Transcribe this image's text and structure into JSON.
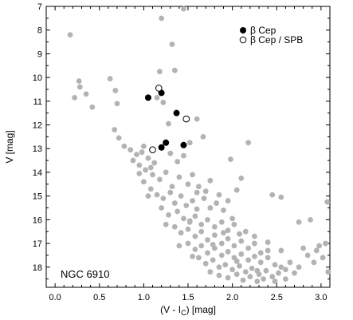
{
  "chart_data": {
    "type": "scatter",
    "xlabel": "(V - I",
    "xlabel_sub": "C",
    "xlabel_tail": ") [mag]",
    "ylabel": "V [mag]",
    "xlim": [
      -0.1,
      3.1
    ],
    "ylim": [
      7,
      18.85
    ],
    "y_inverted": true,
    "x_ticks": [
      0.0,
      0.5,
      1.0,
      1.5,
      2.0,
      2.5,
      3.0
    ],
    "x_tick_labels": [
      "0.0",
      "0.5",
      "1.0",
      "1.5",
      "2.0",
      "2.5",
      "3.0"
    ],
    "y_ticks": [
      7,
      8,
      9,
      10,
      11,
      12,
      13,
      14,
      15,
      16,
      17,
      18
    ],
    "y_tick_labels": [
      "7",
      "8",
      "9",
      "10",
      "11",
      "12",
      "13",
      "14",
      "15",
      "16",
      "17",
      "18"
    ],
    "annotation": "NGC 6910",
    "legend_position": "top-right",
    "grid": false,
    "colors": {
      "field": "#b3b3b3",
      "bcep": "#000000",
      "spb_edge": "#000000"
    },
    "series": [
      {
        "key": "field",
        "style": "filled-gray",
        "points": [
          [
            0.17,
            8.2
          ],
          [
            1.2,
            7.5
          ],
          [
            1.45,
            7.1
          ],
          [
            1.32,
            8.6
          ],
          [
            1.35,
            9.7
          ],
          [
            0.27,
            10.15
          ],
          [
            0.28,
            10.4
          ],
          [
            0.35,
            10.7
          ],
          [
            0.22,
            10.85
          ],
          [
            0.42,
            11.25
          ],
          [
            0.62,
            10.05
          ],
          [
            0.68,
            10.55
          ],
          [
            0.7,
            11.1
          ],
          [
            1.18,
            9.75
          ],
          [
            1.15,
            10.85
          ],
          [
            1.22,
            11.05
          ],
          [
            1.28,
            11.95
          ],
          [
            0.67,
            12.2
          ],
          [
            0.72,
            12.55
          ],
          [
            0.78,
            12.9
          ],
          [
            0.85,
            13.05
          ],
          [
            0.92,
            13.25
          ],
          [
            1.0,
            12.9
          ],
          [
            1.05,
            13.4
          ],
          [
            1.12,
            13.6
          ],
          [
            1.3,
            13.2
          ],
          [
            1.38,
            13.55
          ],
          [
            1.45,
            13.3
          ],
          [
            1.52,
            12.75
          ],
          [
            1.6,
            11.75
          ],
          [
            1.67,
            12.5
          ],
          [
            2.18,
            12.75
          ],
          [
            1.98,
            13.45
          ],
          [
            2.1,
            14.25
          ],
          [
            1.75,
            14.35
          ],
          [
            2.05,
            14.75
          ],
          [
            2.45,
            14.95
          ],
          [
            2.55,
            15.05
          ],
          [
            2.88,
            16.0
          ],
          [
            3.07,
            15.25
          ],
          [
            2.75,
            16.1
          ],
          [
            0.88,
            13.5
          ],
          [
            0.95,
            13.7
          ],
          [
            1.02,
            13.9
          ],
          [
            1.1,
            14.1
          ],
          [
            1.18,
            14.3
          ],
          [
            1.25,
            14.0
          ],
          [
            1.4,
            14.2
          ],
          [
            1.5,
            14.5
          ],
          [
            1.55,
            14.1
          ],
          [
            1.62,
            14.6
          ],
          [
            1.7,
            14.8
          ],
          [
            1.0,
            14.4
          ],
          [
            1.08,
            14.7
          ],
          [
            1.15,
            14.95
          ],
          [
            1.22,
            15.1
          ],
          [
            1.3,
            14.85
          ],
          [
            1.35,
            15.3
          ],
          [
            1.42,
            15.0
          ],
          [
            1.48,
            15.4
          ],
          [
            1.55,
            15.2
          ],
          [
            1.6,
            15.55
          ],
          [
            1.68,
            15.1
          ],
          [
            1.75,
            15.5
          ],
          [
            1.82,
            15.3
          ],
          [
            1.9,
            15.6
          ],
          [
            1.95,
            15.2
          ],
          [
            1.2,
            15.5
          ],
          [
            1.28,
            15.8
          ],
          [
            1.38,
            15.65
          ],
          [
            1.45,
            15.95
          ],
          [
            1.52,
            16.1
          ],
          [
            1.58,
            15.85
          ],
          [
            1.65,
            16.2
          ],
          [
            1.72,
            16.0
          ],
          [
            1.8,
            16.3
          ],
          [
            1.88,
            16.1
          ],
          [
            1.95,
            16.45
          ],
          [
            2.02,
            16.2
          ],
          [
            2.08,
            16.6
          ],
          [
            1.35,
            16.3
          ],
          [
            1.42,
            16.55
          ],
          [
            1.5,
            16.4
          ],
          [
            1.58,
            16.7
          ],
          [
            1.65,
            16.5
          ],
          [
            1.72,
            16.85
          ],
          [
            1.8,
            16.65
          ],
          [
            1.88,
            17.0
          ],
          [
            1.95,
            16.8
          ],
          [
            2.02,
            17.1
          ],
          [
            2.1,
            16.9
          ],
          [
            2.18,
            17.2
          ],
          [
            2.25,
            17.0
          ],
          [
            2.32,
            17.4
          ],
          [
            1.5,
            17.0
          ],
          [
            1.58,
            17.25
          ],
          [
            1.65,
            17.1
          ],
          [
            1.72,
            17.4
          ],
          [
            1.8,
            17.2
          ],
          [
            1.88,
            17.5
          ],
          [
            1.95,
            17.35
          ],
          [
            2.02,
            17.6
          ],
          [
            2.1,
            17.45
          ],
          [
            2.18,
            17.7
          ],
          [
            2.25,
            17.55
          ],
          [
            2.32,
            17.8
          ],
          [
            2.4,
            17.6
          ],
          [
            2.48,
            17.9
          ],
          [
            1.62,
            17.6
          ],
          [
            1.7,
            17.85
          ],
          [
            1.78,
            17.7
          ],
          [
            1.85,
            18.0
          ],
          [
            1.92,
            17.9
          ],
          [
            2.0,
            18.1
          ],
          [
            2.08,
            17.95
          ],
          [
            2.15,
            18.2
          ],
          [
            2.22,
            18.05
          ],
          [
            2.3,
            18.3
          ],
          [
            2.38,
            18.15
          ],
          [
            2.45,
            18.4
          ],
          [
            2.52,
            18.25
          ],
          [
            2.6,
            18.1
          ],
          [
            1.75,
            18.2
          ],
          [
            1.85,
            18.35
          ],
          [
            1.95,
            18.45
          ],
          [
            2.05,
            18.3
          ],
          [
            2.12,
            18.55
          ],
          [
            2.2,
            18.4
          ],
          [
            2.28,
            18.6
          ],
          [
            2.35,
            18.5
          ],
          [
            2.65,
            17.8
          ],
          [
            2.75,
            18.0
          ],
          [
            2.85,
            17.5
          ],
          [
            2.95,
            17.3
          ],
          [
            3.05,
            17.0
          ],
          [
            3.02,
            17.6
          ],
          [
            3.08,
            18.2
          ],
          [
            2.92,
            17.8
          ],
          [
            0.95,
            14.05
          ],
          [
            1.05,
            15.0
          ],
          [
            1.25,
            16.2
          ],
          [
            1.4,
            17.1
          ],
          [
            1.55,
            17.55
          ],
          [
            2.4,
            16.95
          ],
          [
            2.55,
            17.3
          ],
          [
            2.6,
            18.5
          ],
          [
            2.48,
            18.6
          ],
          [
            1.6,
            14.85
          ],
          [
            1.85,
            14.95
          ],
          [
            2.0,
            15.95
          ],
          [
            2.15,
            16.5
          ],
          [
            0.98,
            13.15
          ],
          [
            1.08,
            13.8
          ],
          [
            1.32,
            14.6
          ],
          [
            1.52,
            16.05
          ],
          [
            1.78,
            17.05
          ],
          [
            2.05,
            17.75
          ],
          [
            2.28,
            18.15
          ],
          [
            1.9,
            16.55
          ],
          [
            2.25,
            16.7
          ],
          [
            2.4,
            17.3
          ],
          [
            2.55,
            18.0
          ],
          [
            2.7,
            18.25
          ],
          [
            2.8,
            17.2
          ],
          [
            2.98,
            17.1
          ]
        ]
      },
      {
        "key": "bcep",
        "name": "β Cep",
        "style": "filled-black",
        "points": [
          [
            1.05,
            10.85
          ],
          [
            1.2,
            10.65
          ],
          [
            1.37,
            11.5
          ],
          [
            1.25,
            12.75
          ],
          [
            1.2,
            12.95
          ],
          [
            1.45,
            12.85
          ]
        ]
      },
      {
        "key": "bcep_spb",
        "name": "β Cep / SPB",
        "style": "open-black",
        "points": [
          [
            1.17,
            10.45
          ],
          [
            1.48,
            11.75
          ],
          [
            1.1,
            13.05
          ]
        ]
      }
    ]
  }
}
